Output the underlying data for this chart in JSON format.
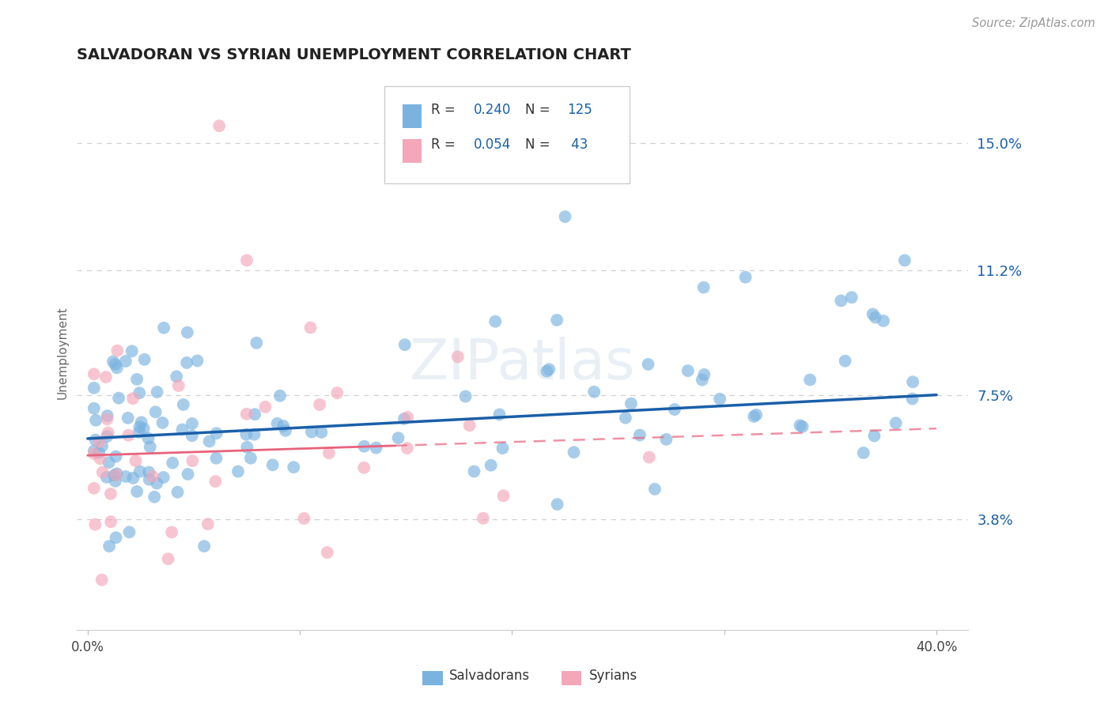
{
  "title": "SALVADORAN VS SYRIAN UNEMPLOYMENT CORRELATION CHART",
  "source": "Source: ZipAtlas.com",
  "ylabel": "Unemployment",
  "y_tick_vals": [
    0.038,
    0.075,
    0.112,
    0.15
  ],
  "y_tick_labels": [
    "3.8%",
    "7.5%",
    "11.2%",
    "15.0%"
  ],
  "xlim": [
    -0.005,
    0.415
  ],
  "ylim": [
    0.005,
    0.17
  ],
  "blue_R": "0.240",
  "blue_N": "125",
  "pink_R": "0.054",
  "pink_N": "43",
  "legend_blue_label": "Salvadorans",
  "legend_pink_label": "Syrians",
  "blue_color": "#7ab3e0",
  "pink_color": "#f4a7b9",
  "trend_blue_color": "#1a5fa8",
  "trend_pink_color": "#e8637c",
  "background_color": "#ffffff",
  "grid_color": "#d0d0d0",
  "watermark": "ZIPatlas",
  "title_color": "#222222",
  "source_color": "#999999",
  "ytick_color": "#1a5fa8",
  "xtick_color": "#444444",
  "ylabel_color": "#666666"
}
